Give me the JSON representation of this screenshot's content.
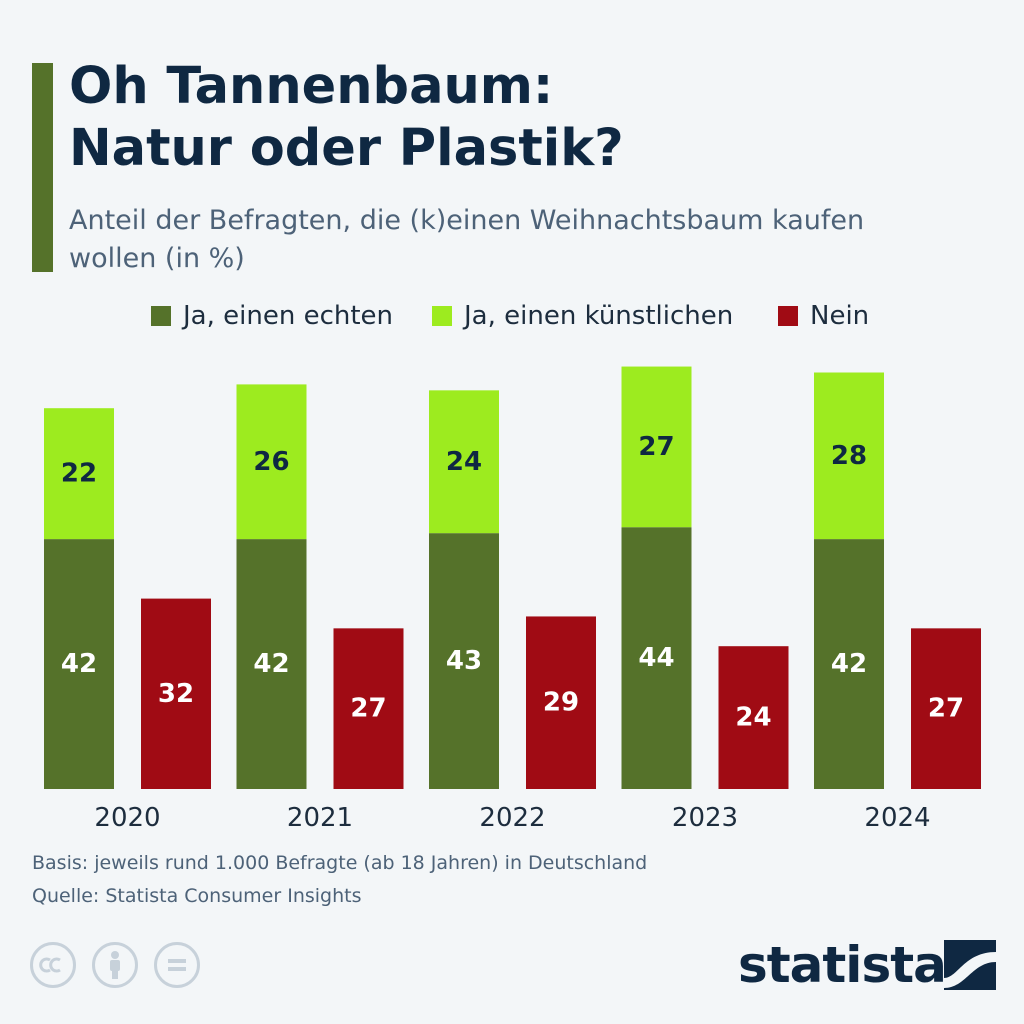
{
  "header": {
    "title_line1": "Oh Tannenbaum:",
    "title_line2": "Natur oder Plastik?",
    "subtitle": "Anteil der Befragten, die (k)einen Weihnachtsbaum kaufen wollen (in %)"
  },
  "colors": {
    "echt": "#55722a",
    "kuenstlich": "#9deb1f",
    "nein": "#a00b14",
    "accent": "#55722a"
  },
  "chart_data": {
    "type": "bar",
    "stacked_group": [
      "Ja, einen echten",
      "Ja, einen künstlichen"
    ],
    "categories": [
      "2020",
      "2021",
      "2022",
      "2023",
      "2024"
    ],
    "series": [
      {
        "name": "Ja, einen echten",
        "values": [
          42,
          42,
          43,
          44,
          42
        ]
      },
      {
        "name": "Ja, einen künstlichen",
        "values": [
          22,
          26,
          24,
          27,
          28
        ]
      },
      {
        "name": "Nein",
        "values": [
          32,
          27,
          29,
          24,
          27
        ]
      }
    ],
    "title": "Oh Tannenbaum: Natur oder Plastik?",
    "xlabel": "",
    "ylabel": "",
    "ylim": [
      0,
      71
    ],
    "grid": false,
    "legend": "top"
  },
  "footer": {
    "basis": "Basis: jeweils rund 1.000 Befragte (ab 18 Jahren) in Deutschland",
    "source": "Quelle: Statista Consumer Insights"
  },
  "branding": {
    "logo_text": "statista",
    "license_icons": [
      "cc-icon",
      "attribution-icon",
      "no-derivatives-icon"
    ]
  }
}
